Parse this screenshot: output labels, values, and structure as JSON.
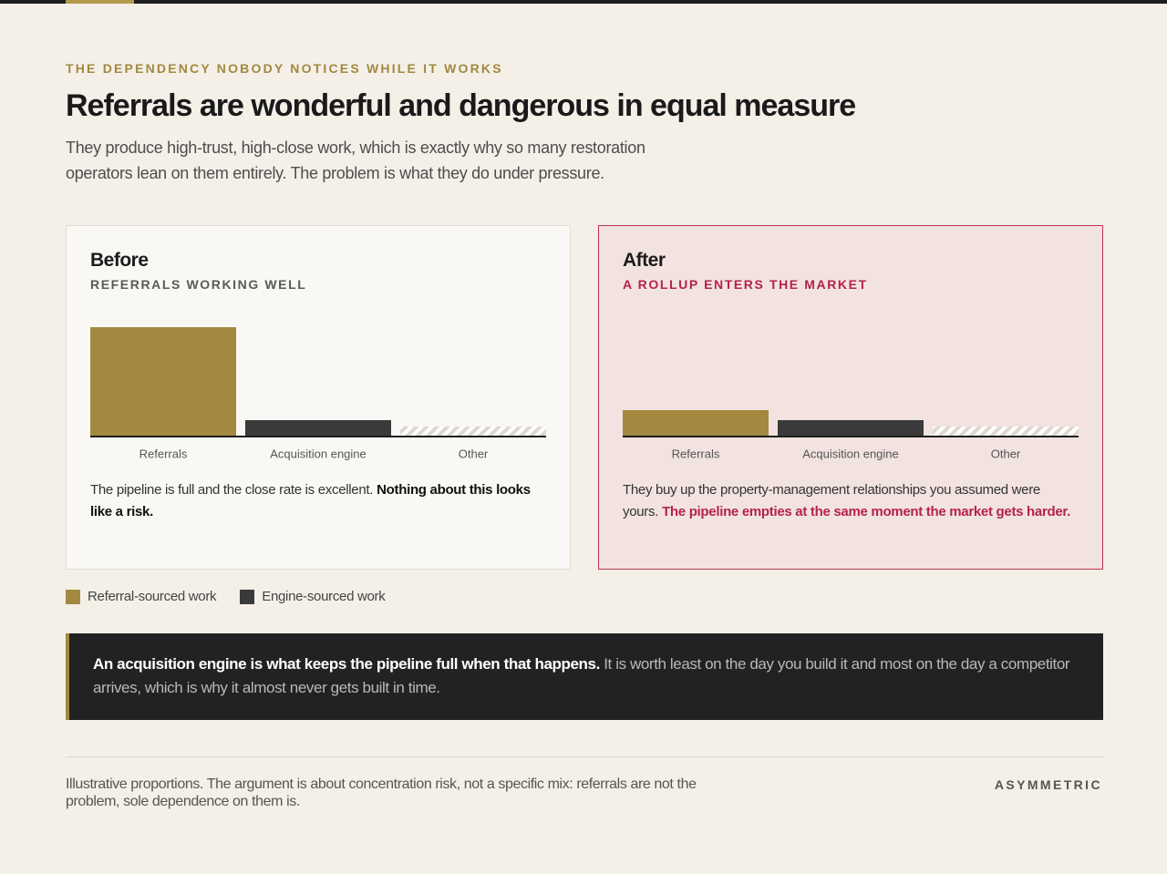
{
  "eyebrow": "THE DEPENDENCY NOBODY NOTICES WHILE IT WORKS",
  "title": "Referrals are wonderful and dangerous in equal measure",
  "subtitle": "They produce high-trust, high-close work, which is exactly why so many restoration operators lean on them entirely. The problem is what they do under pressure.",
  "chart_data": [
    {
      "type": "bar",
      "title": "Before",
      "subtitle": "REFERRALS WORKING WELL",
      "categories": [
        "Referrals",
        "Acquisition engine",
        "Other"
      ],
      "values": [
        119,
        17,
        10
      ],
      "colors": [
        "#a38840",
        "#3a3a3a",
        "#dcd8cf"
      ],
      "hatched": [
        false,
        false,
        true
      ],
      "caption": {
        "plain": "The pipeline is full and the close rate is excellent.",
        "emphasis": "Nothing about this looks like a risk."
      }
    },
    {
      "type": "bar",
      "title": "After",
      "subtitle": "A ROLLUP ENTERS THE MARKET",
      "categories": [
        "Referrals",
        "Acquisition engine",
        "Other"
      ],
      "values": [
        28,
        17,
        10
      ],
      "colors": [
        "#a38840",
        "#3a3a3a",
        "#dcd8cf"
      ],
      "hatched": [
        false,
        false,
        true
      ],
      "caption": {
        "plain": "They buy up the property-management relationships you assumed were yours.",
        "emphasis": "The pipeline empties at the same moment the market gets harder."
      }
    }
  ],
  "legend": [
    {
      "label": "Referral-sourced work",
      "color": "#a38840"
    },
    {
      "label": "Engine-sourced work",
      "color": "#3a3a3a"
    }
  ],
  "callout": {
    "emphasis": "An acquisition engine is what keeps the pipeline full when that happens.",
    "text": "It is worth least on the day you build it and most on the day a competitor arrives, which is why it almost never gets built in time."
  },
  "footer": {
    "note": "Illustrative proportions. The argument is about concentration risk, not a specific mix: referrals are not the problem, sole dependence on them is.",
    "brand": "ASYMMETRIC"
  }
}
